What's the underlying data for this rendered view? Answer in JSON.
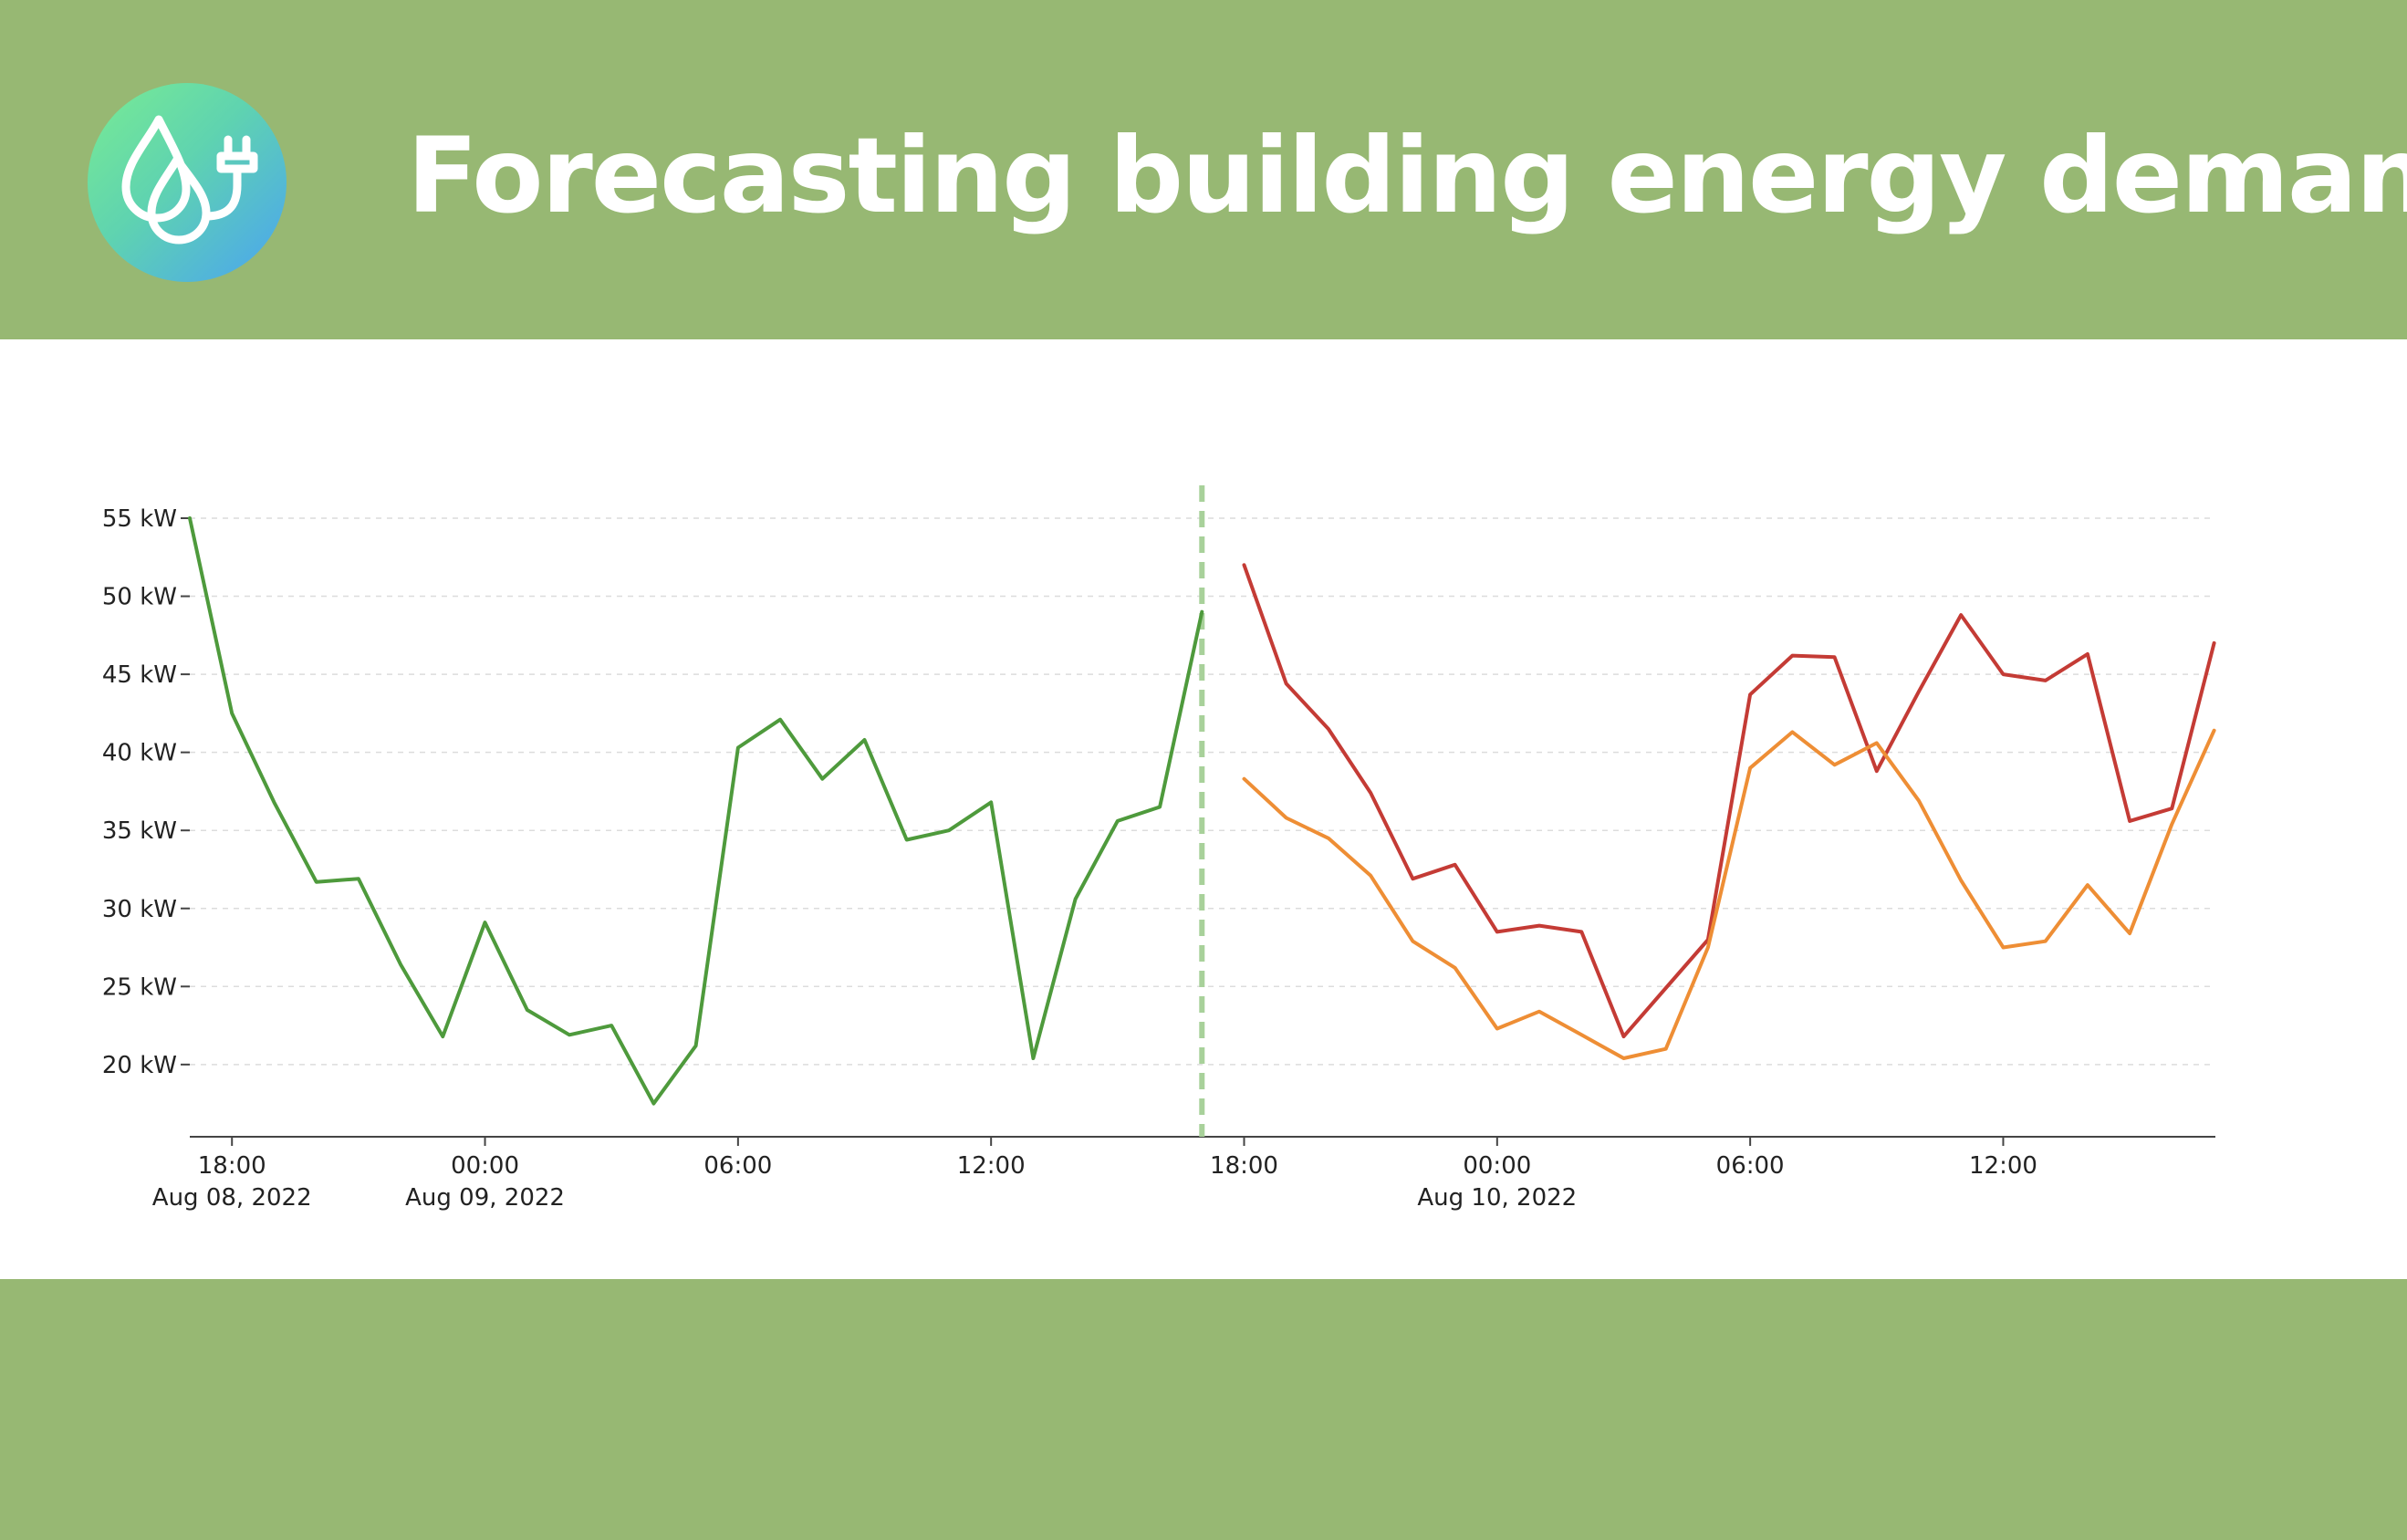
{
  "header": {
    "title": "Forecasting building energy demand",
    "logo_icon": "water-drops-plug-icon"
  },
  "colors": {
    "header_bg": "#97b873",
    "history": "#4e9a3c",
    "forecast_red": "#c43b35",
    "forecast_orange": "#ee8e35",
    "divider": "#a8d19a"
  },
  "chart_data": {
    "type": "line",
    "title": "",
    "xlabel": "",
    "ylabel": "",
    "x_unit": "hour",
    "x_start": "2022-08-08 17:00",
    "ylim": [
      15.5,
      56
    ],
    "yticks": [
      {
        "value": 20,
        "label": "20 kW"
      },
      {
        "value": 25,
        "label": "25 kW"
      },
      {
        "value": 30,
        "label": "30 kW"
      },
      {
        "value": 35,
        "label": "35 kW"
      },
      {
        "value": 40,
        "label": "40 kW"
      },
      {
        "value": 45,
        "label": "45 kW"
      },
      {
        "value": 50,
        "label": "50 kW"
      },
      {
        "value": 55,
        "label": "55 kW"
      }
    ],
    "xticks": [
      {
        "hour": 1,
        "time": "18:00",
        "date": "Aug 08, 2022"
      },
      {
        "hour": 7,
        "time": "00:00",
        "date": "Aug 09, 2022"
      },
      {
        "hour": 13,
        "time": "06:00",
        "date": ""
      },
      {
        "hour": 19,
        "time": "12:00",
        "date": ""
      },
      {
        "hour": 25,
        "time": "18:00",
        "date": ""
      },
      {
        "hour": 31,
        "time": "00:00",
        "date": "Aug 10, 2022"
      },
      {
        "hour": 37,
        "time": "06:00",
        "date": ""
      },
      {
        "hour": 43,
        "time": "12:00",
        "date": ""
      }
    ],
    "divider_hour": 24,
    "grid": true,
    "series": [
      {
        "key": "history",
        "x": [
          0,
          1,
          2,
          3,
          4,
          5,
          6,
          7,
          8,
          9,
          10,
          11,
          12,
          13,
          14,
          15,
          16,
          17,
          18,
          19,
          20,
          21,
          22,
          23,
          24
        ],
        "values": [
          55,
          42.5,
          36.8,
          31.7,
          31.9,
          26.4,
          21.8,
          29.1,
          23.5,
          21.9,
          22.5,
          17.5,
          21.2,
          40.3,
          42.1,
          38.3,
          40.8,
          34.4,
          35,
          36.8,
          20.4,
          30.6,
          35.6,
          36.5,
          49
        ]
      },
      {
        "key": "forecast_red",
        "x": [
          25,
          26,
          27,
          28,
          29,
          30,
          31,
          32,
          33,
          34,
          35,
          36,
          37,
          38,
          39,
          40,
          41,
          42,
          43,
          44,
          45,
          46,
          47,
          48
        ],
        "values": [
          52,
          44.4,
          41.5,
          37.4,
          31.9,
          32.8,
          28.5,
          28.9,
          28.5,
          21.8,
          24.9,
          28,
          43.7,
          46.2,
          46.1,
          38.8,
          43.9,
          48.8,
          45,
          44.6,
          46.3,
          35.6,
          36.4,
          47
        ]
      },
      {
        "key": "forecast_orange",
        "x": [
          25,
          26,
          27,
          28,
          29,
          30,
          31,
          32,
          33,
          34,
          35,
          36,
          37,
          38,
          39,
          40,
          41,
          42,
          43,
          44,
          45,
          46,
          47,
          48
        ],
        "values": [
          38.3,
          35.8,
          34.5,
          32.1,
          27.9,
          26.2,
          22.3,
          23.4,
          21.9,
          20.4,
          21,
          27.5,
          39,
          41.3,
          39.2,
          40.6,
          36.9,
          31.8,
          27.5,
          27.9,
          31.5,
          28.4,
          35.4,
          41.4
        ]
      }
    ]
  }
}
